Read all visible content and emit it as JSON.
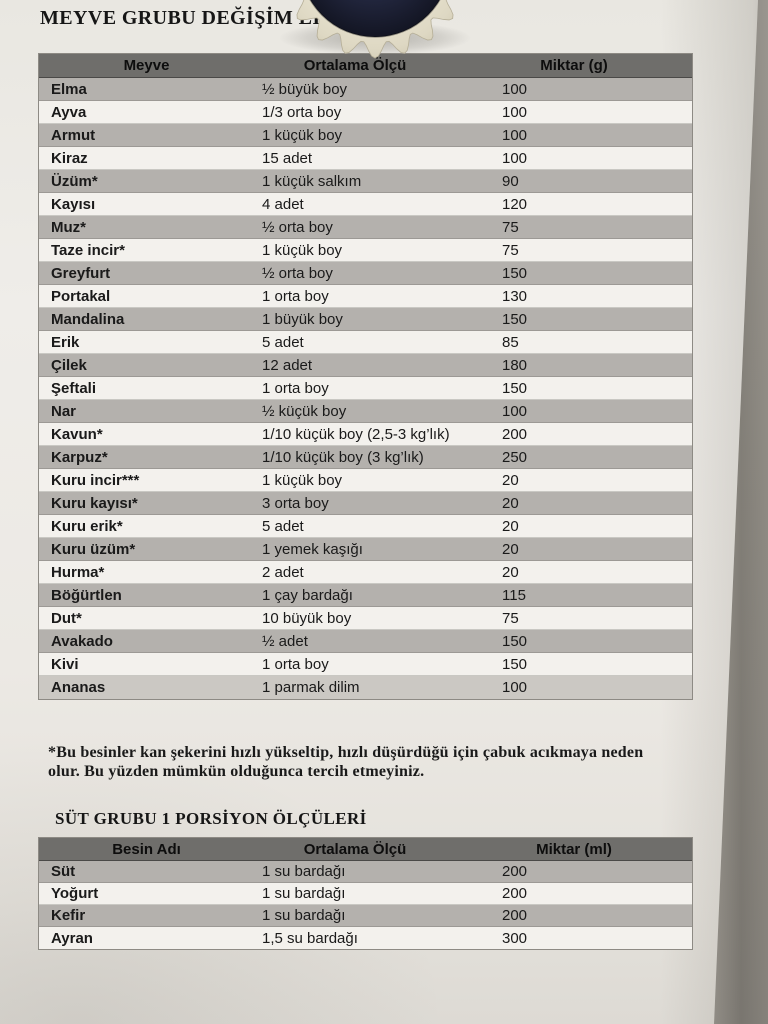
{
  "document": {
    "fruit_section_title": "MEYVE GRUBU DEĞİŞİM LİSTESİ",
    "footnote": {
      "line1": "*Bu besinler kan şekerini hızlı yükseltip, hızlı düşürdüğü için çabuk acıkmaya neden",
      "line2": "olur. Bu yüzden mümkün olduğunca tercih etmeyiniz."
    },
    "milk_section_title": "SÜT GRUBU 1 PORSİYON ÖLÇÜLERİ"
  },
  "fruit_table": {
    "headers": [
      "Meyve",
      "Ortalama Ölçü",
      "Miktar (g)"
    ],
    "rows": [
      [
        "Elma",
        "½ büyük boy",
        "100"
      ],
      [
        "Ayva",
        "1/3 orta boy",
        "100"
      ],
      [
        "Armut",
        "1 küçük boy",
        "100"
      ],
      [
        "Kiraz",
        "15 adet",
        "100"
      ],
      [
        "Üzüm*",
        "1 küçük salkım",
        "90"
      ],
      [
        "Kayısı",
        "4 adet",
        "120"
      ],
      [
        "Muz*",
        "½ orta boy",
        "75"
      ],
      [
        "Taze incir*",
        "1 küçük boy",
        "75"
      ],
      [
        "Greyfurt",
        "½ orta boy",
        "150"
      ],
      [
        "Portakal",
        "1 orta boy",
        "130"
      ],
      [
        "Mandalina",
        "1 büyük boy",
        "150"
      ],
      [
        "Erik",
        "5 adet",
        "85"
      ],
      [
        "Çilek",
        "12 adet",
        "180"
      ],
      [
        "Şeftali",
        "1 orta boy",
        "150"
      ],
      [
        "Nar",
        "½ küçük boy",
        "100"
      ],
      [
        "Kavun*",
        "1/10 küçük boy (2,5-3 kg’lık)",
        "200"
      ],
      [
        "Karpuz*",
        "1/10 küçük boy (3 kg’lık)",
        "250"
      ],
      [
        "Kuru incir***",
        "1 küçük boy",
        "20"
      ],
      [
        "Kuru kayısı*",
        "3 orta boy",
        "20"
      ],
      [
        "Kuru erik*",
        "5 adet",
        "20"
      ],
      [
        "Kuru üzüm*",
        "1 yemek kaşığı",
        "20"
      ],
      [
        "Hurma*",
        "2 adet",
        "20"
      ],
      [
        "Böğürtlen",
        "1 çay bardağı",
        "115"
      ],
      [
        "Dut*",
        "10 büyük boy",
        "75"
      ],
      [
        "Avakado",
        "½ adet",
        "150"
      ],
      [
        "Kivi",
        "1 orta boy",
        "150"
      ],
      [
        "Ananas",
        "1 parmak dilim",
        "100"
      ]
    ]
  },
  "milk_table": {
    "headers": [
      "Besin Adı",
      "Ortalama Ölçü",
      "Miktar (ml)"
    ],
    "rows": [
      [
        "Süt",
        "1 su bardağı",
        "200"
      ],
      [
        "Yoğurt",
        "1 su bardağı",
        "200"
      ],
      [
        "Kefir",
        "1 su bardağı",
        "200"
      ],
      [
        "Ayran",
        "1,5 su bardağı",
        "300"
      ]
    ]
  },
  "colors": {
    "table_header_bg": "#6f6e6b",
    "row_gray": "#b4b1ad",
    "row_white": "#f3f1ed",
    "row_last_light": "#cbc8c3",
    "paper": "#ece9e4",
    "background_surface": "#948f88",
    "cap_rim": "#ece7d5",
    "cap_center": "#1c2033",
    "text": "#1a1a1a"
  }
}
